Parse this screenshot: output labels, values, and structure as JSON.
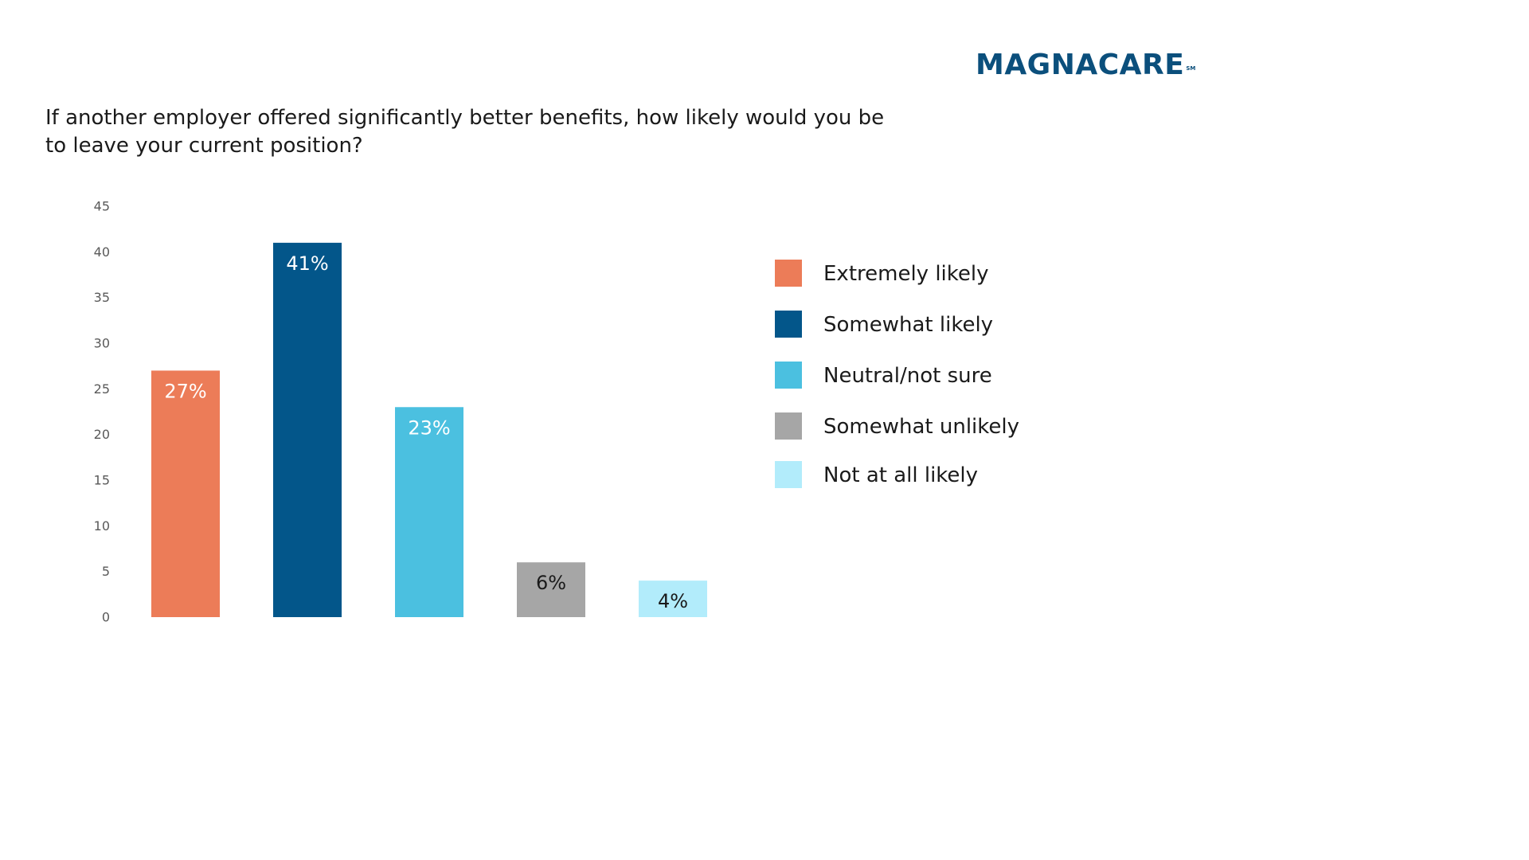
{
  "brand": {
    "name": "MAGNACARE",
    "mark": "SM",
    "color": "#0b4f7c"
  },
  "question": "If another employer offered significantly better benefits, how likely would you be to leave your current position?",
  "chart_data": {
    "type": "bar",
    "title": "",
    "xlabel": "",
    "ylabel": "",
    "ylim": [
      0,
      45
    ],
    "yticks": [
      "0",
      "5",
      "10",
      "15",
      "20",
      "25",
      "30",
      "35",
      "40",
      "45"
    ],
    "grid": false,
    "legend_position": "right",
    "categories": [
      "Extremely likely",
      "Somewhat likely",
      "Neutral/not sure",
      "Somewhat unlikely",
      "Not at all likely"
    ],
    "values": [
      27,
      41,
      23,
      6,
      4
    ],
    "data_labels": [
      "27%",
      "41%",
      "23%",
      "6%",
      "4%"
    ],
    "colors": [
      "#ec7c58",
      "#03568a",
      "#4bc0e0",
      "#a6a6a6",
      "#b2ecfb"
    ],
    "label_colors": [
      "#ffffff",
      "#ffffff",
      "#ffffff",
      "#1a1a1a",
      "#1a1a1a"
    ]
  }
}
